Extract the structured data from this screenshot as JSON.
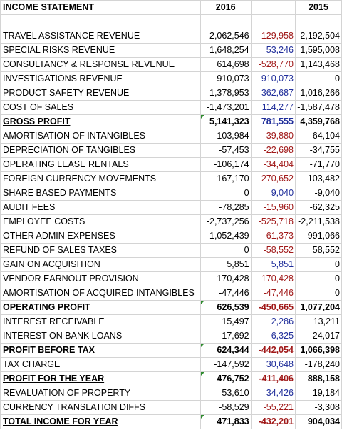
{
  "header": {
    "label": "INCOME STATEMENT",
    "col_2016": "2016",
    "col_2015": "2015"
  },
  "colors": {
    "increase": "#1f2d9a",
    "decrease": "#a01818",
    "note_marker": "#2e8b2e"
  },
  "rows": [
    {
      "label": "",
      "v2016": "",
      "diff": "",
      "v2015": "",
      "sign": "",
      "bold": false,
      "note": false
    },
    {
      "label": "TRAVEL ASSISTANCE REVENUE",
      "v2016": "2,062,546",
      "diff": "-129,958",
      "v2015": "2,192,504",
      "sign": "neg",
      "bold": false,
      "note": false
    },
    {
      "label": "SPECIAL RISKS  REVENUE",
      "v2016": "1,648,254",
      "diff": "53,246",
      "v2015": "1,595,008",
      "sign": "pos",
      "bold": false,
      "note": false
    },
    {
      "label": "CONSULTANCY & RESPONSE REVENUE",
      "v2016": "614,698",
      "diff": "-528,770",
      "v2015": "1,143,468",
      "sign": "neg",
      "bold": false,
      "note": false
    },
    {
      "label": "INVESTIGATIONS REVENUE",
      "v2016": "910,073",
      "diff": "910,073",
      "v2015": "0",
      "sign": "pos",
      "bold": false,
      "note": false
    },
    {
      "label": "PRODUCT SAFETY REVENUE",
      "v2016": "1,378,953",
      "diff": "362,687",
      "v2015": "1,016,266",
      "sign": "pos",
      "bold": false,
      "note": false
    },
    {
      "label": "COST OF SALES",
      "v2016": "-1,473,201",
      "diff": "114,277",
      "v2015": "-1,587,478",
      "sign": "pos",
      "bold": false,
      "note": false
    },
    {
      "label": "GROSS PROFIT",
      "v2016": "5,141,323",
      "diff": "781,555",
      "v2015": "4,359,768",
      "sign": "pos",
      "bold": true,
      "note": true
    },
    {
      "label": "AMORTISATION OF INTANGIBLES",
      "v2016": "-103,984",
      "diff": "-39,880",
      "v2015": "-64,104",
      "sign": "neg",
      "bold": false,
      "note": false
    },
    {
      "label": "DEPRECIATION OF TANGIBLES",
      "v2016": "-57,453",
      "diff": "-22,698",
      "v2015": "-34,755",
      "sign": "neg",
      "bold": false,
      "note": false
    },
    {
      "label": "OPERATING LEASE RENTALS",
      "v2016": "-106,174",
      "diff": "-34,404",
      "v2015": "-71,770",
      "sign": "neg",
      "bold": false,
      "note": false
    },
    {
      "label": "FOREIGN CURRENCY MOVEMENTS",
      "v2016": "-167,170",
      "diff": "-270,652",
      "v2015": "103,482",
      "sign": "neg",
      "bold": false,
      "note": false
    },
    {
      "label": "SHARE BASED PAYMENTS",
      "v2016": "0",
      "diff": "9,040",
      "v2015": "-9,040",
      "sign": "pos",
      "bold": false,
      "note": false
    },
    {
      "label": "AUDIT FEES",
      "v2016": "-78,285",
      "diff": "-15,960",
      "v2015": "-62,325",
      "sign": "neg",
      "bold": false,
      "note": false
    },
    {
      "label": "EMPLOYEE COSTS",
      "v2016": "-2,737,256",
      "diff": "-525,718",
      "v2015": "-2,211,538",
      "sign": "neg",
      "bold": false,
      "note": false
    },
    {
      "label": "OTHER ADMIN EXPENSES",
      "v2016": "-1,052,439",
      "diff": "-61,373",
      "v2015": "-991,066",
      "sign": "neg",
      "bold": false,
      "note": false
    },
    {
      "label": "REFUND OF SALES TAXES",
      "v2016": "0",
      "diff": "-58,552",
      "v2015": "58,552",
      "sign": "neg",
      "bold": false,
      "note": false
    },
    {
      "label": "GAIN ON ACQUISITION",
      "v2016": "5,851",
      "diff": "5,851",
      "v2015": "0",
      "sign": "pos",
      "bold": false,
      "note": false
    },
    {
      "label": "VENDOR EARNOUT PROVISION",
      "v2016": "-170,428",
      "diff": "-170,428",
      "v2015": "0",
      "sign": "neg",
      "bold": false,
      "note": false
    },
    {
      "label": "AMORTISATION OF ACQUIRED INTANGIBLES",
      "v2016": "-47,446",
      "diff": "-47,446",
      "v2015": "0",
      "sign": "neg",
      "bold": false,
      "note": false
    },
    {
      "label": "OPERATING PROFIT",
      "v2016": "626,539",
      "diff": "-450,665",
      "v2015": "1,077,204",
      "sign": "neg",
      "bold": true,
      "note": true
    },
    {
      "label": "INTEREST RECEIVABLE",
      "v2016": "15,497",
      "diff": "2,286",
      "v2015": "13,211",
      "sign": "pos",
      "bold": false,
      "note": false
    },
    {
      "label": "INTEREST ON BANK LOANS",
      "v2016": "-17,692",
      "diff": "6,325",
      "v2015": "-24,017",
      "sign": "pos",
      "bold": false,
      "note": false
    },
    {
      "label": "PROFIT BEFORE TAX",
      "v2016": "624,344",
      "diff": "-442,054",
      "v2015": "1,066,398",
      "sign": "neg",
      "bold": true,
      "note": true
    },
    {
      "label": "TAX CHARGE",
      "v2016": "-147,592",
      "diff": "30,648",
      "v2015": "-178,240",
      "sign": "pos",
      "bold": false,
      "note": false
    },
    {
      "label": "PROFIT FOR THE YEAR",
      "v2016": "476,752",
      "diff": "-411,406",
      "v2015": "888,158",
      "sign": "neg",
      "bold": true,
      "note": true
    },
    {
      "label": "REVALUATION OF PROPERTY",
      "v2016": "53,610",
      "diff": "34,426",
      "v2015": "19,184",
      "sign": "pos",
      "bold": false,
      "note": false
    },
    {
      "label": "CURRENCY TRANSLATION DIFFS",
      "v2016": "-58,529",
      "diff": "-55,221",
      "v2015": "-3,308",
      "sign": "neg",
      "bold": false,
      "note": false
    },
    {
      "label": "TOTAL INCOME FOR YEAR",
      "v2016": "471,833",
      "diff": "-432,201",
      "v2015": "904,034",
      "sign": "neg",
      "bold": true,
      "note": true
    }
  ]
}
